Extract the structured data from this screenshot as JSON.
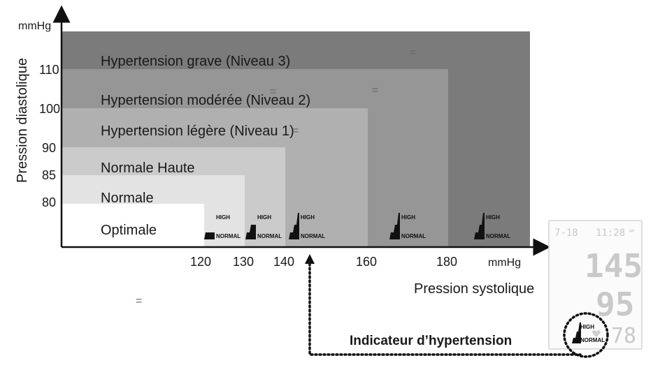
{
  "diagram": {
    "y_axis": {
      "title": "Pression diastolique",
      "unit": "mmHg",
      "ticks": [
        "110",
        "100",
        "90",
        "85",
        "80"
      ]
    },
    "x_axis": {
      "title": "Pression systolique",
      "unit": "mmHg",
      "ticks": [
        "120",
        "130",
        "140",
        "160",
        "180"
      ]
    },
    "zones": [
      {
        "label": "Hypertension grave (Niveau 3)",
        "color": "#7a7a7a"
      },
      {
        "label": "Hypertension modérée (Niveau 2)",
        "color": "#959595"
      },
      {
        "label": "Hypertension légère (Niveau 1)",
        "color": "#b0b0b0"
      },
      {
        "label": "Normale Haute",
        "color": "#cbcbcb"
      },
      {
        "label": "Normale",
        "color": "#e4e4e4"
      },
      {
        "label": "Optimale",
        "color": "#ffffff"
      }
    ],
    "indicator": {
      "high_label": "HIGH",
      "normal_label": "NORMAL"
    },
    "caption": "Indicateur d’hypertension",
    "display": {
      "date": "7-18",
      "time": "11:28",
      "ampm": "AM",
      "systolic": "145",
      "diastolic": "95",
      "pulse": "78"
    },
    "stray_marks": [
      "=",
      "=",
      "=",
      "=",
      "=",
      "="
    ]
  }
}
